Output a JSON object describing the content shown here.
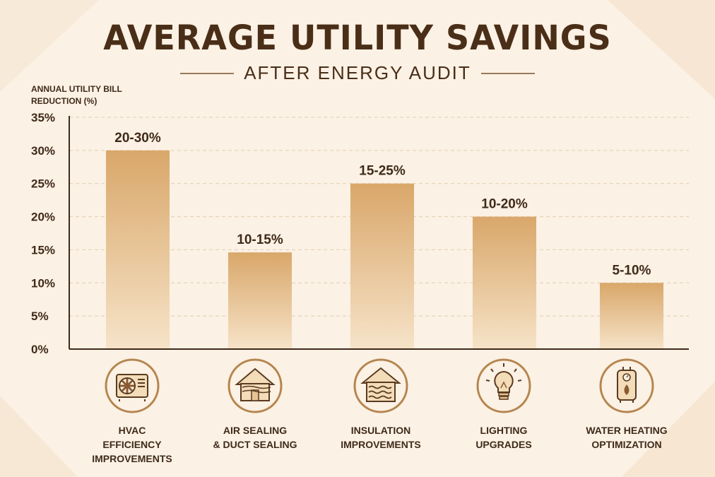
{
  "title": "AVERAGE UTILITY SAVINGS",
  "subtitle": "AFTER ENERGY AUDIT",
  "colors": {
    "bar_top": "#d9a76a",
    "bar_bottom": "#f6e3c8",
    "text": "#3f2a1a",
    "accent": "#b5854f"
  },
  "chart_data": {
    "type": "bar",
    "ylabel": "ANNUAL UTILITY BILL REDUCTION (%)",
    "ylim": [
      0,
      35
    ],
    "yticks": [
      "0%",
      "5%",
      "10%",
      "15%",
      "20%",
      "25%",
      "30%",
      "35%"
    ],
    "grid": true,
    "categories": [
      "HVAC EFFICIENCY IMPROVEMENTS",
      "AIR SEALING & DUCT SEALING",
      "INSULATION IMPROVEMENTS",
      "LIGHTING UPGRADES",
      "WATER HEATING OPTIMIZATION"
    ],
    "values": [
      30,
      14.6,
      25,
      20,
      10
    ],
    "data_labels": [
      "20-30%",
      "10-15%",
      "15-25%",
      "10-20%",
      "5-10%"
    ]
  },
  "categories_display": [
    {
      "line1": "HVAC",
      "line2": "EFFICIENCY",
      "line3": "IMPROVEMENTS",
      "icon": "air-conditioner-icon"
    },
    {
      "line1": "AIR SEALING",
      "line2": "& DUCT SEALING",
      "line3": "",
      "icon": "house-airflow-icon"
    },
    {
      "line1": "INSULATION",
      "line2": "IMPROVEMENTS",
      "line3": "",
      "icon": "house-insulation-icon"
    },
    {
      "line1": "LIGHTING",
      "line2": "UPGRADES",
      "line3": "",
      "icon": "light-bulb-icon"
    },
    {
      "line1": "WATER HEATING",
      "line2": "OPTIMIZATION",
      "line3": "",
      "icon": "water-heater-icon"
    }
  ]
}
